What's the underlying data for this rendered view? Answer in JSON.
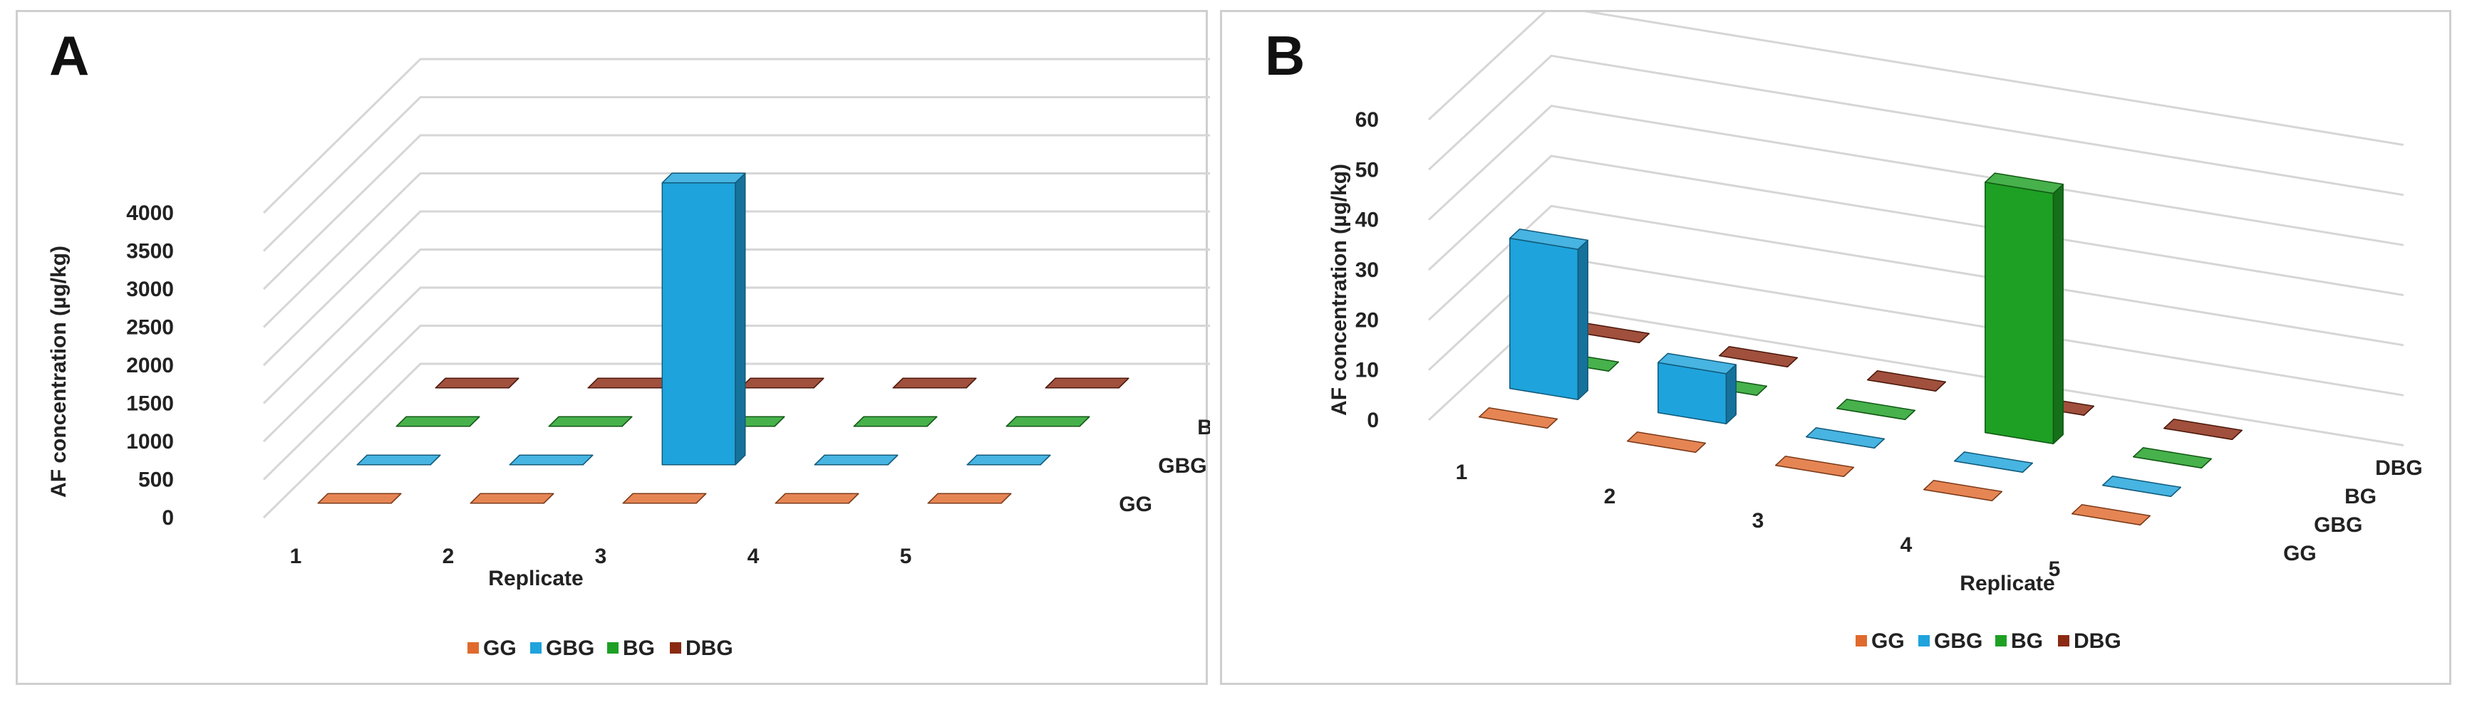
{
  "chart_data": [
    {
      "type": "bar3d",
      "panel_label": "A",
      "ylabel": "AF concentration (µg/kg)",
      "xlabel": "Replicate",
      "categories": [
        "1",
        "2",
        "3",
        "4",
        "5"
      ],
      "series_order": [
        "GG",
        "GBG",
        "BG",
        "DBG"
      ],
      "yticks": [
        0,
        500,
        1000,
        1500,
        2000,
        2500,
        3000,
        3500,
        4000
      ],
      "ylim": [
        0,
        4000
      ],
      "legend": [
        "GG",
        "GBG",
        "BG",
        "DBG"
      ],
      "series": [
        {
          "name": "GG",
          "color": "#E06A2E",
          "values": [
            0,
            0,
            0,
            0,
            0
          ]
        },
        {
          "name": "GBG",
          "color": "#1FA3DC",
          "values": [
            0,
            0,
            3700,
            0,
            0
          ]
        },
        {
          "name": "BG",
          "color": "#1EA024",
          "values": [
            0,
            0,
            0,
            0,
            0
          ]
        },
        {
          "name": "DBG",
          "color": "#8B2A12",
          "values": [
            0,
            0,
            0,
            0,
            0
          ]
        }
      ]
    },
    {
      "type": "bar3d",
      "panel_label": "B",
      "ylabel": "AF concentration (µg/kg)",
      "xlabel": "Replicate",
      "categories": [
        "1",
        "2",
        "3",
        "4",
        "5"
      ],
      "series_order": [
        "GG",
        "GBG",
        "BG",
        "DBG"
      ],
      "yticks": [
        0,
        10,
        20,
        30,
        40,
        50,
        60
      ],
      "ylim": [
        0,
        60
      ],
      "legend": [
        "GG",
        "GBG",
        "BG",
        "DBG"
      ],
      "series": [
        {
          "name": "GG",
          "color": "#E06A2E",
          "values": [
            0,
            0,
            0,
            0,
            0
          ]
        },
        {
          "name": "GBG",
          "color": "#1FA3DC",
          "values": [
            30,
            10,
            0,
            0,
            0
          ]
        },
        {
          "name": "BG",
          "color": "#1EA024",
          "values": [
            0,
            0,
            0,
            50,
            0
          ]
        },
        {
          "name": "DBG",
          "color": "#8B2A12",
          "values": [
            0,
            0,
            0,
            0,
            0
          ]
        }
      ]
    }
  ]
}
